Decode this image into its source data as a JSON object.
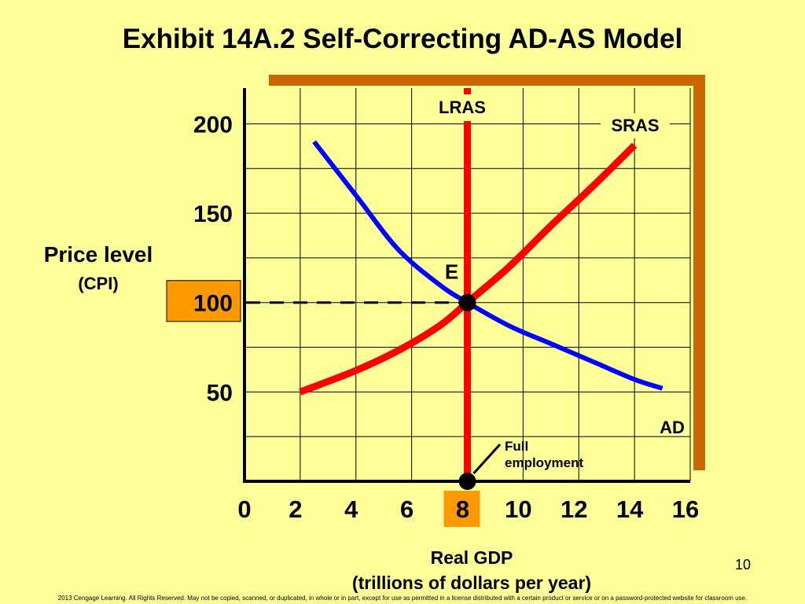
{
  "title": "Exhibit 14A.2 Self-Correcting AD-AS Model",
  "ylabel": "Price level",
  "ylabel_sub": "(CPI)",
  "xlabel": "Real GDP",
  "xlabel_sub": "(trillions of dollars per year)",
  "page_number": "10",
  "footer": "2013 Cengage Learning. All Rights Reserved. May not be copied, scanned, or duplicated, in whole or in part, except for use as permitted in a license distributed with a certain product or service or on a password-protected website for classroom use.",
  "colors": {
    "background": "#FFFF99",
    "frame_shadow": "#CC6600",
    "highlight": "#FF9900",
    "ad": "#0000FF",
    "supply": "#FF0000"
  },
  "chart_data": {
    "type": "line",
    "title": "Exhibit 14A.2 Self-Correcting AD-AS Model",
    "xlabel": "Real GDP (trillions of dollars per year)",
    "ylabel": "Price level (CPI)",
    "xlim": [
      0,
      16
    ],
    "ylim": [
      0,
      220
    ],
    "grid": true,
    "x_ticks": [
      "0",
      "2",
      "4",
      "6",
      "8",
      "10",
      "12",
      "14",
      "16"
    ],
    "y_ticks": [
      "50",
      "100",
      "150",
      "200"
    ],
    "highlighted_x_tick": "8",
    "highlighted_y_tick": "100",
    "series": [
      {
        "name": "AD",
        "color": "#0000FF",
        "points": [
          [
            2.5,
            190
          ],
          [
            4,
            160
          ],
          [
            5.5,
            130
          ],
          [
            7,
            110
          ],
          [
            8,
            100
          ],
          [
            9.5,
            87
          ],
          [
            11,
            77
          ],
          [
            12.5,
            67
          ],
          [
            14,
            57
          ],
          [
            15,
            52
          ]
        ]
      },
      {
        "name": "SRAS",
        "color": "#FF0000",
        "points": [
          [
            2,
            50
          ],
          [
            4,
            62
          ],
          [
            5.5,
            73
          ],
          [
            7,
            87
          ],
          [
            8,
            100
          ],
          [
            9.5,
            120
          ],
          [
            11,
            143
          ],
          [
            12.5,
            165
          ],
          [
            14,
            188
          ]
        ]
      },
      {
        "name": "LRAS",
        "color": "#FF0000",
        "points": [
          [
            8,
            0
          ],
          [
            8,
            220
          ]
        ]
      }
    ],
    "markers": [
      {
        "label": "E",
        "x": 8,
        "y": 100
      },
      {
        "label": "",
        "x": 8,
        "y": 0
      }
    ],
    "annotations": [
      {
        "text": "Full employment",
        "points_to": [
          8,
          0
        ]
      }
    ],
    "reference_lines": [
      {
        "type": "horizontal-dashed",
        "y": 100,
        "x_from": 0,
        "x_to": 8
      }
    ]
  }
}
